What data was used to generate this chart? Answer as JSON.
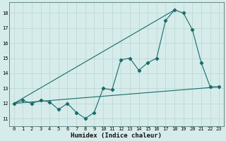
{
  "xlabel": "Humidex (Indice chaleur)",
  "xlim": [
    -0.5,
    23.5
  ],
  "ylim": [
    10.5,
    18.7
  ],
  "yticks": [
    11,
    12,
    13,
    14,
    15,
    16,
    17,
    18
  ],
  "xticks": [
    0,
    1,
    2,
    3,
    4,
    5,
    6,
    7,
    8,
    9,
    10,
    11,
    12,
    13,
    14,
    15,
    16,
    17,
    18,
    19,
    20,
    21,
    22,
    23
  ],
  "bg_color": "#d5ecea",
  "line_color": "#1a6b6b",
  "grid_color": "#c0d8d5",
  "series1_x": [
    0,
    1,
    2,
    3,
    4,
    5,
    6,
    7,
    8,
    9,
    10,
    11,
    12,
    13,
    14,
    15,
    16,
    17,
    18,
    19,
    20,
    21,
    22,
    23
  ],
  "series1_y": [
    12.0,
    12.2,
    12.0,
    12.2,
    12.1,
    11.6,
    12.0,
    11.4,
    11.0,
    11.4,
    13.0,
    12.9,
    14.9,
    15.0,
    14.2,
    14.7,
    15.0,
    17.5,
    18.2,
    18.0,
    16.9,
    14.7,
    13.1,
    13.1
  ],
  "series2_x": [
    0,
    23
  ],
  "series2_y": [
    12.0,
    13.1
  ],
  "series3_x": [
    0,
    18
  ],
  "series3_y": [
    12.0,
    18.2
  ],
  "ylabel_fontsize": 5.5,
  "xlabel_fontsize": 6.5,
  "tick_fontsize": 5.0
}
